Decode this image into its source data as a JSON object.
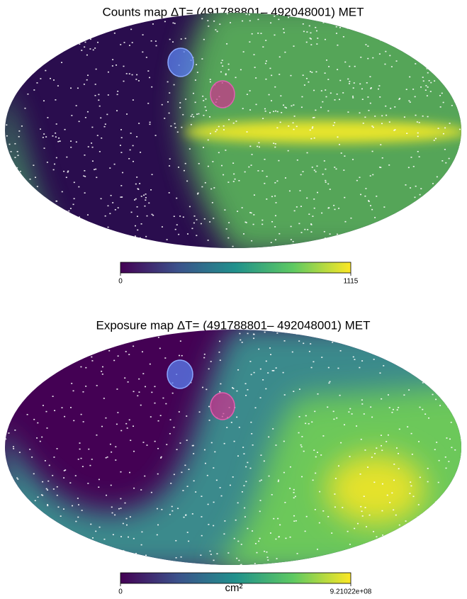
{
  "chart_data": [
    {
      "type": "map",
      "title": "Counts map ΔT= (491788801– 492048001) MET",
      "clim": [
        0,
        1115
      ],
      "cticks": [
        0,
        1115
      ]
    },
    {
      "type": "map",
      "title": "Exposure map ΔT= (491788801– 492048001) MET",
      "clim": [
        0,
        921022000
      ],
      "cticks": [
        0,
        {
          "value": 921022000,
          "label": "9.21022e+08"
        }
      ],
      "colorbar_label": "cm²"
    }
  ]
}
